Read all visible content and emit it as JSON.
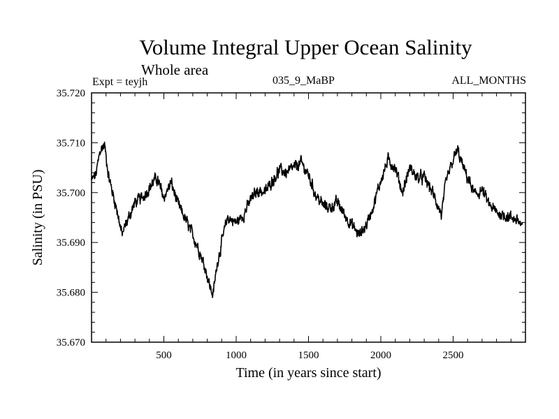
{
  "figure": {
    "title": "Volume Integral Upper Ocean Salinity",
    "subtitle": "Whole area",
    "experiment": "Expt = teyjh",
    "run_id": "035_9_MaBP",
    "months": "ALL_MONTHS"
  },
  "chart_data": {
    "type": "line",
    "title": "Volume Integral Upper Ocean Salinity",
    "xlabel": "Time (in years since start)",
    "ylabel": "Salinity (in PSU)",
    "xlim": [
      0,
      3000
    ],
    "ylim": [
      35.67,
      35.72
    ],
    "xticks": [
      500,
      1000,
      1500,
      2000,
      2500
    ],
    "xtick_labels": [
      "500",
      "1000",
      "1500",
      "2000",
      "2500"
    ],
    "yticks": [
      35.67,
      35.68,
      35.69,
      35.7,
      35.71,
      35.72
    ],
    "ytick_labels": [
      "35.670",
      "35.680",
      "35.690",
      "35.700",
      "35.710",
      "35.720"
    ],
    "grid": false,
    "series": [
      {
        "name": "salinity",
        "color": "#000000",
        "x": [
          0,
          30,
          60,
          90,
          120,
          150,
          180,
          210,
          250,
          300,
          350,
          400,
          450,
          500,
          550,
          600,
          650,
          700,
          750,
          790,
          820,
          840,
          870,
          900,
          940,
          1000,
          1050,
          1100,
          1150,
          1200,
          1250,
          1300,
          1350,
          1400,
          1450,
          1500,
          1550,
          1600,
          1650,
          1700,
          1750,
          1800,
          1850,
          1900,
          1950,
          2000,
          2050,
          2100,
          2150,
          2200,
          2250,
          2300,
          2350,
          2400,
          2420,
          2450,
          2500,
          2530,
          2570,
          2600,
          2650,
          2700,
          2750,
          2800,
          2850,
          2900,
          2950,
          2980
        ],
        "values": [
          35.7025,
          35.7035,
          35.7085,
          35.7095,
          35.703,
          35.6995,
          35.696,
          35.6915,
          35.6945,
          35.698,
          35.699,
          35.701,
          35.703,
          35.699,
          35.702,
          35.6975,
          35.6945,
          35.6915,
          35.688,
          35.6845,
          35.681,
          35.6795,
          35.686,
          35.69,
          35.695,
          35.694,
          35.6955,
          35.6985,
          35.7005,
          35.7,
          35.7025,
          35.7045,
          35.704,
          35.705,
          35.706,
          35.7035,
          35.6995,
          35.6975,
          35.697,
          35.698,
          35.6955,
          35.6935,
          35.6915,
          35.6935,
          35.6975,
          35.7025,
          35.7065,
          35.705,
          35.7,
          35.705,
          35.703,
          35.703,
          35.7005,
          35.697,
          35.6955,
          35.702,
          35.7065,
          35.7085,
          35.705,
          35.703,
          35.6995,
          35.7005,
          35.6975,
          35.696,
          35.6955,
          35.695,
          35.6945,
          35.693
        ]
      }
    ]
  }
}
